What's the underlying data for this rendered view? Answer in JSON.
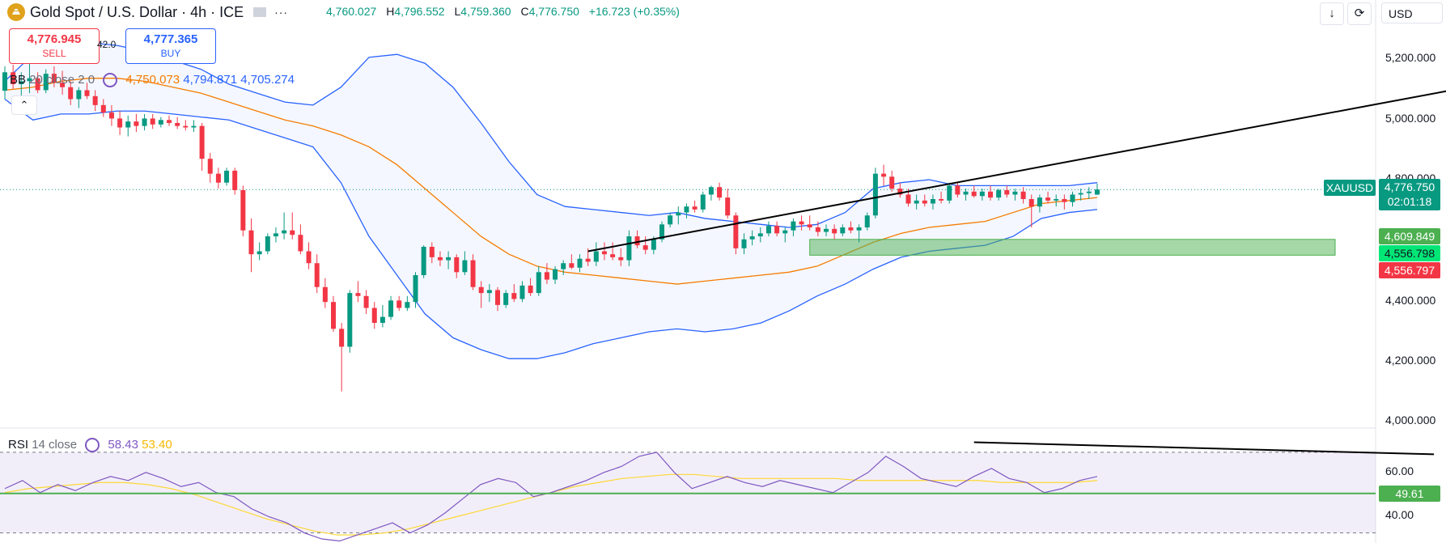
{
  "header": {
    "title": "Gold Spot / U.S. Dollar · 4h · ICE",
    "more_label": "···",
    "ohlc": [
      {
        "key": "",
        "value": "4,760.027"
      },
      {
        "key": "H",
        "value": "4,796.552"
      },
      {
        "key": "L",
        "value": "4,759.360"
      },
      {
        "key": "C",
        "value": "4,776.750"
      },
      {
        "key": "",
        "value": "+16.723 (+0.35%)"
      }
    ],
    "currency": "USD",
    "download_icon": "download-icon",
    "replay_icon": "replay-icon"
  },
  "trade": {
    "sell_price": "4,776.945",
    "sell_label": "SELL",
    "buy_price": "4,777.365",
    "buy_label": "BUY",
    "spread": "42.0"
  },
  "bb_legend": {
    "name": "BB",
    "params": "20 close 2 0",
    "basis": "4,750.073",
    "upper": "4,794.871",
    "lower": "4,705.274"
  },
  "rsi_legend": {
    "name": "RSI",
    "params": "14 close",
    "rsi": "58.43",
    "ma": "53.40"
  },
  "price_axis": [
    "5,200.000",
    "5,000.000",
    "4,800.000",
    "4,400.000",
    "4,200.000",
    "4,000.000"
  ],
  "rsi_axis": [
    "60.00",
    "40.00"
  ],
  "price_tags": {
    "symbol": "XAUUSD",
    "last": "4,776.750",
    "countdown": "02:01:18",
    "zone_top": "4,609.849",
    "zone_bottom_green": "4,556.798",
    "zone_bottom_red": "4,556.797",
    "rsi_level": "49.61"
  },
  "colors": {
    "up": "#089981",
    "down": "#f23645",
    "bb_band": "#2962ff",
    "bb_basis": "#f57c00",
    "rsi": "#7e57c2",
    "rsi_ma": "#fdd835",
    "zone": "#4caf50",
    "trendline": "#000000",
    "tag_blue": "#2962ff",
    "tag_teal": "#089981",
    "tag_zone": "#4caf50",
    "tag_red": "#f23645",
    "tag_lime": "#00e676"
  },
  "chart_data": {
    "type": "candlestick",
    "timeframe": "4h",
    "y_range_price": [
      3980,
      5320
    ],
    "y_range_rsi": [
      25,
      80
    ],
    "rsi_band": [
      30,
      70
    ],
    "last_close": 4776.75,
    "zone": [
      4556.8,
      4609.85
    ],
    "candles": [
      {
        "o": 5108,
        "h": 5190,
        "l": 5080,
        "c": 5170
      },
      {
        "o": 5170,
        "h": 5195,
        "l": 5115,
        "c": 5130
      },
      {
        "o": 5130,
        "h": 5170,
        "l": 5090,
        "c": 5140
      },
      {
        "o": 5140,
        "h": 5200,
        "l": 5100,
        "c": 5150
      },
      {
        "o": 5150,
        "h": 5170,
        "l": 5100,
        "c": 5110
      },
      {
        "o": 5110,
        "h": 5180,
        "l": 5100,
        "c": 5165
      },
      {
        "o": 5165,
        "h": 5190,
        "l": 5120,
        "c": 5135
      },
      {
        "o": 5135,
        "h": 5175,
        "l": 5095,
        "c": 5120
      },
      {
        "o": 5120,
        "h": 5140,
        "l": 5060,
        "c": 5080
      },
      {
        "o": 5080,
        "h": 5120,
        "l": 5050,
        "c": 5110
      },
      {
        "o": 5110,
        "h": 5135,
        "l": 5080,
        "c": 5090
      },
      {
        "o": 5090,
        "h": 5110,
        "l": 5040,
        "c": 5060
      },
      {
        "o": 5060,
        "h": 5080,
        "l": 5020,
        "c": 5035
      },
      {
        "o": 5035,
        "h": 5060,
        "l": 4990,
        "c": 5015
      },
      {
        "o": 5015,
        "h": 5040,
        "l": 4960,
        "c": 4985
      },
      {
        "o": 4985,
        "h": 5025,
        "l": 4955,
        "c": 5005
      },
      {
        "o": 5005,
        "h": 5030,
        "l": 4970,
        "c": 4990
      },
      {
        "o": 4990,
        "h": 5030,
        "l": 4975,
        "c": 5015
      },
      {
        "o": 5015,
        "h": 5030,
        "l": 4980,
        "c": 4995
      },
      {
        "o": 4995,
        "h": 5020,
        "l": 4985,
        "c": 5010
      },
      {
        "o": 5010,
        "h": 5025,
        "l": 4990,
        "c": 5000
      },
      {
        "o": 5000,
        "h": 5020,
        "l": 4980,
        "c": 4990
      },
      {
        "o": 4990,
        "h": 5010,
        "l": 4975,
        "c": 4985
      },
      {
        "o": 4985,
        "h": 5010,
        "l": 4970,
        "c": 4990
      },
      {
        "o": 4990,
        "h": 5000,
        "l": 4840,
        "c": 4880
      },
      {
        "o": 4880,
        "h": 4900,
        "l": 4800,
        "c": 4830
      },
      {
        "o": 4830,
        "h": 4850,
        "l": 4780,
        "c": 4800
      },
      {
        "o": 4800,
        "h": 4850,
        "l": 4790,
        "c": 4840
      },
      {
        "o": 4840,
        "h": 4850,
        "l": 4760,
        "c": 4775
      },
      {
        "o": 4775,
        "h": 4790,
        "l": 4620,
        "c": 4640
      },
      {
        "o": 4640,
        "h": 4680,
        "l": 4500,
        "c": 4560
      },
      {
        "o": 4560,
        "h": 4600,
        "l": 4540,
        "c": 4570
      },
      {
        "o": 4570,
        "h": 4630,
        "l": 4560,
        "c": 4620
      },
      {
        "o": 4620,
        "h": 4650,
        "l": 4600,
        "c": 4630
      },
      {
        "o": 4630,
        "h": 4700,
        "l": 4610,
        "c": 4640
      },
      {
        "o": 4640,
        "h": 4700,
        "l": 4610,
        "c": 4625
      },
      {
        "o": 4625,
        "h": 4660,
        "l": 4560,
        "c": 4570
      },
      {
        "o": 4570,
        "h": 4600,
        "l": 4510,
        "c": 4530
      },
      {
        "o": 4530,
        "h": 4560,
        "l": 4430,
        "c": 4450
      },
      {
        "o": 4450,
        "h": 4480,
        "l": 4380,
        "c": 4400
      },
      {
        "o": 4400,
        "h": 4420,
        "l": 4300,
        "c": 4310
      },
      {
        "o": 4310,
        "h": 4330,
        "l": 4100,
        "c": 4250
      },
      {
        "o": 4250,
        "h": 4440,
        "l": 4230,
        "c": 4430
      },
      {
        "o": 4430,
        "h": 4470,
        "l": 4400,
        "c": 4420
      },
      {
        "o": 4420,
        "h": 4440,
        "l": 4360,
        "c": 4380
      },
      {
        "o": 4380,
        "h": 4400,
        "l": 4310,
        "c": 4330
      },
      {
        "o": 4330,
        "h": 4390,
        "l": 4315,
        "c": 4350
      },
      {
        "o": 4350,
        "h": 4420,
        "l": 4340,
        "c": 4405
      },
      {
        "o": 4405,
        "h": 4420,
        "l": 4370,
        "c": 4380
      },
      {
        "o": 4380,
        "h": 4420,
        "l": 4370,
        "c": 4400
      },
      {
        "o": 4400,
        "h": 4500,
        "l": 4380,
        "c": 4490
      },
      {
        "o": 4490,
        "h": 4590,
        "l": 4480,
        "c": 4585
      },
      {
        "o": 4585,
        "h": 4600,
        "l": 4530,
        "c": 4550
      },
      {
        "o": 4550,
        "h": 4570,
        "l": 4520,
        "c": 4540
      },
      {
        "o": 4540,
        "h": 4570,
        "l": 4510,
        "c": 4550
      },
      {
        "o": 4550,
        "h": 4560,
        "l": 4480,
        "c": 4500
      },
      {
        "o": 4500,
        "h": 4570,
        "l": 4490,
        "c": 4540
      },
      {
        "o": 4540,
        "h": 4560,
        "l": 4440,
        "c": 4450
      },
      {
        "o": 4450,
        "h": 4470,
        "l": 4380,
        "c": 4430
      },
      {
        "o": 4430,
        "h": 4460,
        "l": 4400,
        "c": 4440
      },
      {
        "o": 4440,
        "h": 4450,
        "l": 4370,
        "c": 4390
      },
      {
        "o": 4390,
        "h": 4440,
        "l": 4380,
        "c": 4430
      },
      {
        "o": 4430,
        "h": 4460,
        "l": 4400,
        "c": 4410
      },
      {
        "o": 4410,
        "h": 4470,
        "l": 4400,
        "c": 4455
      },
      {
        "o": 4455,
        "h": 4480,
        "l": 4420,
        "c": 4430
      },
      {
        "o": 4430,
        "h": 4520,
        "l": 4420,
        "c": 4500
      },
      {
        "o": 4500,
        "h": 4530,
        "l": 4460,
        "c": 4475
      },
      {
        "o": 4475,
        "h": 4520,
        "l": 4460,
        "c": 4510
      },
      {
        "o": 4510,
        "h": 4540,
        "l": 4490,
        "c": 4530
      },
      {
        "o": 4530,
        "h": 4560,
        "l": 4510,
        "c": 4515
      },
      {
        "o": 4515,
        "h": 4560,
        "l": 4500,
        "c": 4545
      },
      {
        "o": 4545,
        "h": 4580,
        "l": 4520,
        "c": 4535
      },
      {
        "o": 4535,
        "h": 4600,
        "l": 4520,
        "c": 4570
      },
      {
        "o": 4570,
        "h": 4600,
        "l": 4540,
        "c": 4560
      },
      {
        "o": 4560,
        "h": 4600,
        "l": 4540,
        "c": 4550
      },
      {
        "o": 4550,
        "h": 4580,
        "l": 4520,
        "c": 4540
      },
      {
        "o": 4540,
        "h": 4640,
        "l": 4520,
        "c": 4620
      },
      {
        "o": 4620,
        "h": 4640,
        "l": 4580,
        "c": 4590
      },
      {
        "o": 4590,
        "h": 4620,
        "l": 4560,
        "c": 4575
      },
      {
        "o": 4575,
        "h": 4620,
        "l": 4560,
        "c": 4610
      },
      {
        "o": 4610,
        "h": 4670,
        "l": 4600,
        "c": 4660
      },
      {
        "o": 4660,
        "h": 4700,
        "l": 4650,
        "c": 4690
      },
      {
        "o": 4690,
        "h": 4720,
        "l": 4660,
        "c": 4700
      },
      {
        "o": 4700,
        "h": 4730,
        "l": 4680,
        "c": 4720
      },
      {
        "o": 4720,
        "h": 4740,
        "l": 4700,
        "c": 4710
      },
      {
        "o": 4710,
        "h": 4770,
        "l": 4700,
        "c": 4760
      },
      {
        "o": 4760,
        "h": 4790,
        "l": 4740,
        "c": 4785
      },
      {
        "o": 4785,
        "h": 4800,
        "l": 4740,
        "c": 4750
      },
      {
        "o": 4750,
        "h": 4780,
        "l": 4680,
        "c": 4690
      },
      {
        "o": 4690,
        "h": 4700,
        "l": 4560,
        "c": 4580
      },
      {
        "o": 4580,
        "h": 4630,
        "l": 4560,
        "c": 4610
      },
      {
        "o": 4610,
        "h": 4640,
        "l": 4590,
        "c": 4620
      },
      {
        "o": 4620,
        "h": 4650,
        "l": 4600,
        "c": 4630
      },
      {
        "o": 4630,
        "h": 4670,
        "l": 4620,
        "c": 4655
      },
      {
        "o": 4655,
        "h": 4670,
        "l": 4620,
        "c": 4630
      },
      {
        "o": 4630,
        "h": 4650,
        "l": 4600,
        "c": 4640
      },
      {
        "o": 4640,
        "h": 4680,
        "l": 4620,
        "c": 4670
      },
      {
        "o": 4670,
        "h": 4690,
        "l": 4640,
        "c": 4660
      },
      {
        "o": 4660,
        "h": 4690,
        "l": 4640,
        "c": 4650
      },
      {
        "o": 4650,
        "h": 4670,
        "l": 4620,
        "c": 4635
      },
      {
        "o": 4635,
        "h": 4660,
        "l": 4620,
        "c": 4645
      },
      {
        "o": 4645,
        "h": 4660,
        "l": 4610,
        "c": 4630
      },
      {
        "o": 4630,
        "h": 4660,
        "l": 4620,
        "c": 4650
      },
      {
        "o": 4650,
        "h": 4670,
        "l": 4630,
        "c": 4640
      },
      {
        "o": 4640,
        "h": 4660,
        "l": 4600,
        "c": 4650
      },
      {
        "o": 4650,
        "h": 4700,
        "l": 4640,
        "c": 4690
      },
      {
        "o": 4690,
        "h": 4850,
        "l": 4680,
        "c": 4830
      },
      {
        "o": 4830,
        "h": 4860,
        "l": 4790,
        "c": 4820
      },
      {
        "o": 4820,
        "h": 4840,
        "l": 4770,
        "c": 4780
      },
      {
        "o": 4780,
        "h": 4800,
        "l": 4750,
        "c": 4760
      },
      {
        "o": 4760,
        "h": 4780,
        "l": 4720,
        "c": 4730
      },
      {
        "o": 4730,
        "h": 4760,
        "l": 4710,
        "c": 4740
      },
      {
        "o": 4740,
        "h": 4760,
        "l": 4720,
        "c": 4730
      },
      {
        "o": 4730,
        "h": 4760,
        "l": 4710,
        "c": 4745
      },
      {
        "o": 4745,
        "h": 4770,
        "l": 4730,
        "c": 4740
      },
      {
        "o": 4740,
        "h": 4800,
        "l": 4730,
        "c": 4790
      },
      {
        "o": 4790,
        "h": 4800,
        "l": 4750,
        "c": 4760
      },
      {
        "o": 4760,
        "h": 4780,
        "l": 4740,
        "c": 4770
      },
      {
        "o": 4770,
        "h": 4790,
        "l": 4750,
        "c": 4755
      },
      {
        "o": 4755,
        "h": 4780,
        "l": 4740,
        "c": 4770
      },
      {
        "o": 4770,
        "h": 4790,
        "l": 4740,
        "c": 4750
      },
      {
        "o": 4750,
        "h": 4780,
        "l": 4740,
        "c": 4775
      },
      {
        "o": 4775,
        "h": 4790,
        "l": 4750,
        "c": 4760
      },
      {
        "o": 4760,
        "h": 4780,
        "l": 4740,
        "c": 4770
      },
      {
        "o": 4770,
        "h": 4785,
        "l": 4730,
        "c": 4745
      },
      {
        "o": 4745,
        "h": 4760,
        "l": 4650,
        "c": 4720
      },
      {
        "o": 4720,
        "h": 4760,
        "l": 4700,
        "c": 4750
      },
      {
        "o": 4750,
        "h": 4770,
        "l": 4730,
        "c": 4740
      },
      {
        "o": 4740,
        "h": 4760,
        "l": 4720,
        "c": 4745
      },
      {
        "o": 4745,
        "h": 4760,
        "l": 4710,
        "c": 4735
      },
      {
        "o": 4735,
        "h": 4770,
        "l": 4720,
        "c": 4760
      },
      {
        "o": 4760,
        "h": 4780,
        "l": 4740,
        "c": 4765
      },
      {
        "o": 4765,
        "h": 4785,
        "l": 4745,
        "c": 4770
      },
      {
        "o": 4760,
        "h": 4797,
        "l": 4759,
        "c": 4777
      }
    ],
    "bb_upper": [
      5140,
      5230,
      5250,
      5270,
      5260,
      5240,
      5210,
      5180,
      5130,
      5100,
      5070,
      5060,
      5120,
      5220,
      5230,
      5200,
      5120,
      5000,
      4870,
      4760,
      4720,
      4710,
      4700,
      4690,
      4700,
      4680,
      4670,
      4660,
      4650,
      4660,
      4700,
      4780,
      4800,
      4810,
      4790,
      4790,
      4790,
      4790,
      4790,
      4800
    ],
    "bb_basis": [
      5110,
      5120,
      5140,
      5150,
      5150,
      5140,
      5120,
      5100,
      5070,
      5040,
      5010,
      4990,
      4960,
      4920,
      4860,
      4780,
      4700,
      4620,
      4560,
      4520,
      4500,
      4490,
      4480,
      4470,
      4460,
      4470,
      4480,
      4490,
      4500,
      4520,
      4560,
      4600,
      4630,
      4650,
      4660,
      4670,
      4700,
      4730,
      4740,
      4750
    ],
    "bb_lower": [
      5080,
      5010,
      5030,
      5030,
      5040,
      5040,
      5030,
      5020,
      5010,
      4980,
      4950,
      4920,
      4800,
      4620,
      4490,
      4360,
      4280,
      4240,
      4210,
      4210,
      4230,
      4260,
      4280,
      4300,
      4310,
      4300,
      4310,
      4330,
      4370,
      4420,
      4460,
      4510,
      4550,
      4570,
      4580,
      4590,
      4620,
      4680,
      4700,
      4710
    ],
    "rsi": [
      52,
      56,
      50,
      54,
      51,
      55,
      58,
      56,
      60,
      57,
      53,
      55,
      50,
      48,
      42,
      38,
      35,
      30,
      27,
      26,
      29,
      32,
      35,
      30,
      34,
      40,
      47,
      54,
      57,
      55,
      48,
      50,
      53,
      56,
      60,
      63,
      68,
      70,
      60,
      52,
      55,
      58,
      55,
      53,
      56,
      54,
      52,
      50,
      55,
      60,
      68,
      63,
      57,
      55,
      53,
      58,
      62,
      57,
      55,
      50,
      52,
      56,
      58
    ],
    "rsi_ma": [
      50,
      52,
      53,
      54,
      55,
      55,
      54,
      52,
      49,
      45,
      41,
      37,
      34,
      31,
      29,
      29,
      30,
      32,
      35,
      38,
      41,
      44,
      47,
      50,
      53,
      55,
      57,
      58,
      59,
      59,
      58,
      57,
      57,
      57,
      57,
      57,
      56,
      56,
      56,
      56,
      56,
      56,
      55,
      55,
      55,
      55,
      56
    ],
    "rsi_level": 49.61,
    "trendlines": [
      {
        "pane": "price",
        "from": {
          "i": 71,
          "v": 4570
        },
        "to": {
          "i": 182,
          "v": 5140
        }
      },
      {
        "pane": "rsi",
        "from": {
          "i": 118,
          "v": 75
        },
        "to": {
          "i": 174,
          "v": 69
        }
      }
    ]
  }
}
